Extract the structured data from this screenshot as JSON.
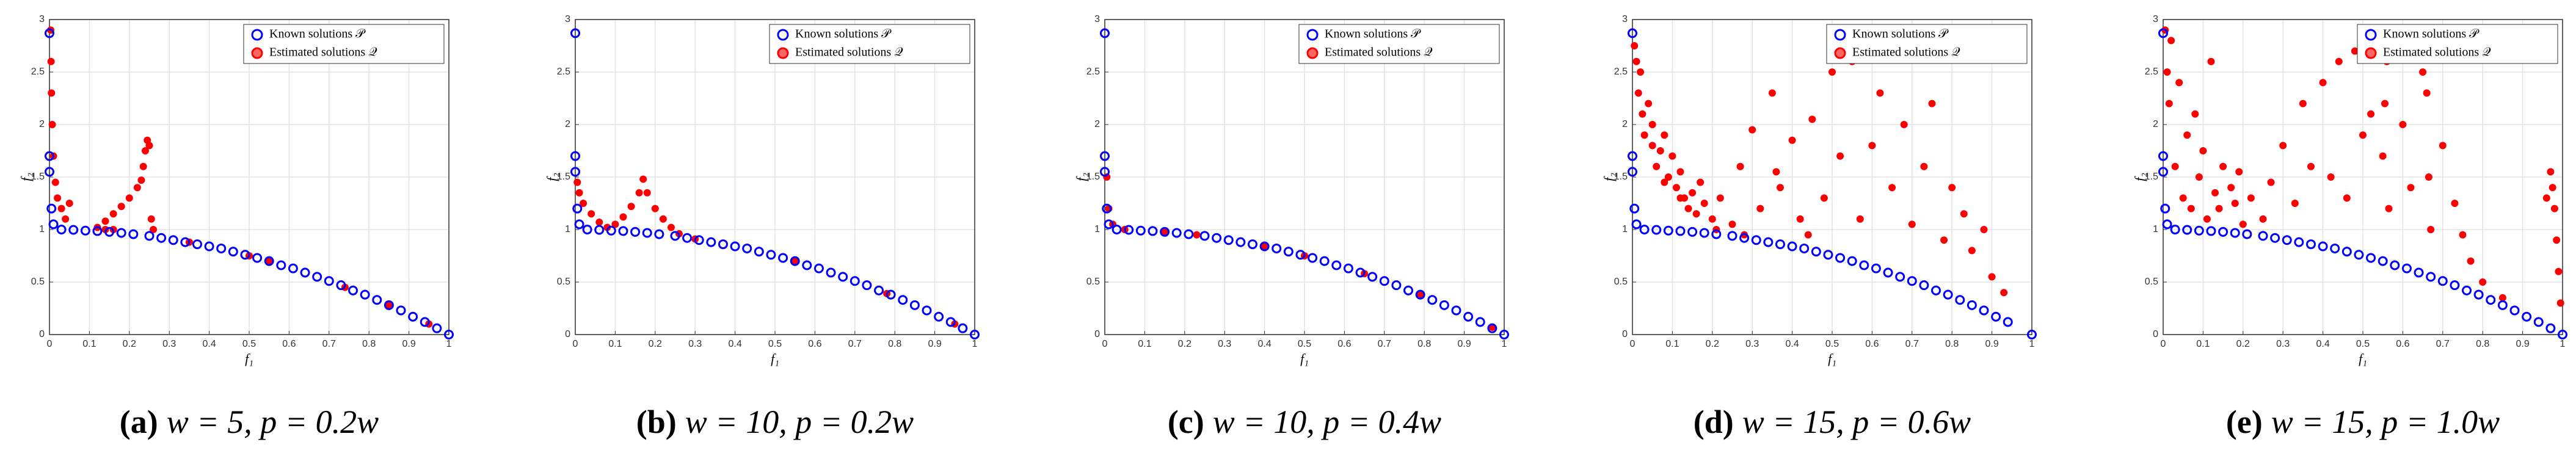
{
  "chart_data": [
    {
      "type": "scatter",
      "caption_label": "(a)",
      "caption": "w = 5, p = 0.2w",
      "xlabel": "f₁",
      "ylabel": "f₂",
      "xlim": [
        0,
        1
      ],
      "ylim": [
        0,
        3
      ],
      "xticks": [
        0,
        0.1,
        0.2,
        0.3,
        0.4,
        0.5,
        0.6,
        0.7,
        0.8,
        0.9,
        1
      ],
      "yticks": [
        0,
        0.5,
        1,
        1.5,
        2,
        2.5,
        3
      ],
      "grid": true,
      "series": [
        {
          "name": "Known solutions 𝒫",
          "color": "#0000ff",
          "x": [
            0,
            0,
            0,
            0.005,
            0.01,
            0.03,
            0.06,
            0.09,
            0.12,
            0.15,
            0.18,
            0.21,
            0.25,
            0.28,
            0.31,
            0.34,
            0.37,
            0.4,
            0.43,
            0.46,
            0.49,
            0.52,
            0.55,
            0.58,
            0.61,
            0.64,
            0.67,
            0.7,
            0.73,
            0.76,
            0.79,
            0.82,
            0.85,
            0.88,
            0.91,
            0.94,
            0.97,
            1
          ],
          "values": [
            2.87,
            1.7,
            1.55,
            1.2,
            1.05,
            1.0,
            0.997,
            0.99,
            0.986,
            0.978,
            0.968,
            0.956,
            0.94,
            0.92,
            0.9,
            0.88,
            0.86,
            0.84,
            0.82,
            0.79,
            0.76,
            0.73,
            0.7,
            0.66,
            0.63,
            0.59,
            0.55,
            0.51,
            0.47,
            0.42,
            0.38,
            0.33,
            0.28,
            0.23,
            0.17,
            0.12,
            0.06,
            0
          ]
        },
        {
          "name": "Estimated solutions 𝒬",
          "color": "#ff0000",
          "x": [
            0.003,
            0.004,
            0.005,
            0.007,
            0.01,
            0.015,
            0.02,
            0.03,
            0.04,
            0.05,
            0.12,
            0.14,
            0.16,
            0.18,
            0.2,
            0.22,
            0.23,
            0.14,
            0.16,
            0.235,
            0.24,
            0.245,
            0.25,
            0.255,
            0.26,
            0.35,
            0.5,
            0.55,
            0.74,
            0.85,
            0.95
          ],
          "values": [
            2.9,
            2.6,
            2.3,
            2.0,
            1.7,
            1.45,
            1.3,
            1.2,
            1.1,
            1.25,
            1.02,
            1.08,
            1.15,
            1.22,
            1.3,
            1.4,
            1.47,
            1.0,
            1.0,
            1.6,
            1.75,
            1.85,
            1.8,
            1.1,
            1.0,
            0.88,
            0.75,
            0.7,
            0.45,
            0.28,
            0.1
          ]
        }
      ]
    },
    {
      "type": "scatter",
      "caption_label": "(b)",
      "caption": "w = 10, p = 0.2w",
      "xlabel": "f₁",
      "ylabel": "f₂",
      "xlim": [
        0,
        1
      ],
      "ylim": [
        0,
        3
      ],
      "xticks": [
        0,
        0.1,
        0.2,
        0.3,
        0.4,
        0.5,
        0.6,
        0.7,
        0.8,
        0.9,
        1
      ],
      "yticks": [
        0,
        0.5,
        1,
        1.5,
        2,
        2.5,
        3
      ],
      "grid": true,
      "series": [
        {
          "name": "Known solutions 𝒫",
          "color": "#0000ff",
          "x": [
            0,
            0,
            0,
            0.005,
            0.01,
            0.03,
            0.06,
            0.09,
            0.12,
            0.15,
            0.18,
            0.21,
            0.25,
            0.28,
            0.31,
            0.34,
            0.37,
            0.4,
            0.43,
            0.46,
            0.49,
            0.52,
            0.55,
            0.58,
            0.61,
            0.64,
            0.67,
            0.7,
            0.73,
            0.76,
            0.79,
            0.82,
            0.85,
            0.88,
            0.91,
            0.94,
            0.97,
            1
          ],
          "values": [
            2.87,
            1.7,
            1.55,
            1.2,
            1.05,
            1.0,
            0.997,
            0.99,
            0.986,
            0.978,
            0.968,
            0.956,
            0.94,
            0.92,
            0.9,
            0.88,
            0.86,
            0.84,
            0.82,
            0.79,
            0.76,
            0.73,
            0.7,
            0.66,
            0.63,
            0.59,
            0.55,
            0.51,
            0.47,
            0.42,
            0.38,
            0.33,
            0.28,
            0.23,
            0.17,
            0.12,
            0.06,
            0
          ]
        },
        {
          "name": "Estimated solutions 𝒬",
          "color": "#ff0000",
          "x": [
            0.005,
            0.01,
            0.02,
            0.04,
            0.06,
            0.08,
            0.1,
            0.12,
            0.14,
            0.16,
            0.17,
            0.18,
            0.2,
            0.22,
            0.24,
            0.26,
            0.3,
            0.55,
            0.78,
            0.95
          ],
          "values": [
            1.45,
            1.35,
            1.25,
            1.15,
            1.07,
            1.02,
            1.05,
            1.12,
            1.22,
            1.35,
            1.48,
            1.35,
            1.2,
            1.1,
            1.02,
            0.96,
            0.91,
            0.7,
            0.39,
            0.1
          ]
        }
      ]
    },
    {
      "type": "scatter",
      "caption_label": "(c)",
      "caption": "w = 10, p = 0.4w",
      "xlabel": "f₁",
      "ylabel": "f₂",
      "xlim": [
        0,
        1
      ],
      "ylim": [
        0,
        3
      ],
      "xticks": [
        0,
        0.1,
        0.2,
        0.3,
        0.4,
        0.5,
        0.6,
        0.7,
        0.8,
        0.9,
        1
      ],
      "yticks": [
        0,
        0.5,
        1,
        1.5,
        2,
        2.5,
        3
      ],
      "grid": true,
      "series": [
        {
          "name": "Known solutions 𝒫",
          "color": "#0000ff",
          "x": [
            0,
            0,
            0,
            0.005,
            0.01,
            0.03,
            0.06,
            0.09,
            0.12,
            0.15,
            0.18,
            0.21,
            0.25,
            0.28,
            0.31,
            0.34,
            0.37,
            0.4,
            0.43,
            0.46,
            0.49,
            0.52,
            0.55,
            0.58,
            0.61,
            0.64,
            0.67,
            0.7,
            0.73,
            0.76,
            0.79,
            0.82,
            0.85,
            0.88,
            0.91,
            0.94,
            0.97,
            1
          ],
          "values": [
            2.87,
            1.7,
            1.55,
            1.2,
            1.05,
            1.0,
            0.997,
            0.99,
            0.986,
            0.978,
            0.968,
            0.956,
            0.94,
            0.92,
            0.9,
            0.88,
            0.86,
            0.84,
            0.82,
            0.79,
            0.76,
            0.73,
            0.7,
            0.66,
            0.63,
            0.59,
            0.55,
            0.51,
            0.47,
            0.42,
            0.38,
            0.33,
            0.28,
            0.23,
            0.17,
            0.12,
            0.06,
            0
          ]
        },
        {
          "name": "Estimated solutions 𝒬",
          "color": "#ff0000",
          "x": [
            0.005,
            0.01,
            0.02,
            0.05,
            0.15,
            0.23,
            0.4,
            0.5,
            0.65,
            0.79,
            0.97
          ],
          "values": [
            1.5,
            1.2,
            1.05,
            1.0,
            0.98,
            0.95,
            0.84,
            0.75,
            0.58,
            0.38,
            0.07
          ]
        }
      ]
    },
    {
      "type": "scatter",
      "caption_label": "(d)",
      "caption": "w = 15, p = 0.6w",
      "xlabel": "f₁",
      "ylabel": "f₂",
      "xlim": [
        0,
        1
      ],
      "ylim": [
        0,
        3
      ],
      "xticks": [
        0,
        0.1,
        0.2,
        0.3,
        0.4,
        0.5,
        0.6,
        0.7,
        0.8,
        0.9,
        1
      ],
      "yticks": [
        0,
        0.5,
        1,
        1.5,
        2,
        2.5,
        3
      ],
      "grid": true,
      "series": [
        {
          "name": "Known solutions 𝒫",
          "color": "#0000ff",
          "x": [
            0,
            0,
            0,
            0.005,
            0.01,
            0.03,
            0.06,
            0.09,
            0.12,
            0.15,
            0.18,
            0.21,
            0.25,
            0.28,
            0.31,
            0.34,
            0.37,
            0.4,
            0.43,
            0.46,
            0.49,
            0.52,
            0.55,
            0.58,
            0.61,
            0.64,
            0.67,
            0.7,
            0.73,
            0.76,
            0.79,
            0.82,
            0.85,
            0.88,
            0.91,
            0.94,
            1
          ],
          "values": [
            2.87,
            1.7,
            1.55,
            1.2,
            1.05,
            1.0,
            0.997,
            0.99,
            0.986,
            0.978,
            0.968,
            0.956,
            0.94,
            0.92,
            0.9,
            0.88,
            0.86,
            0.84,
            0.82,
            0.79,
            0.76,
            0.73,
            0.7,
            0.66,
            0.63,
            0.59,
            0.55,
            0.51,
            0.47,
            0.42,
            0.38,
            0.33,
            0.28,
            0.23,
            0.17,
            0.12,
            0
          ]
        },
        {
          "name": "Estimated solutions 𝒬",
          "color": "#ff0000",
          "x": [
            0.005,
            0.01,
            0.015,
            0.02,
            0.025,
            0.03,
            0.04,
            0.05,
            0.06,
            0.07,
            0.08,
            0.09,
            0.1,
            0.11,
            0.12,
            0.13,
            0.14,
            0.15,
            0.16,
            0.18,
            0.2,
            0.22,
            0.25,
            0.27,
            0.3,
            0.32,
            0.35,
            0.37,
            0.4,
            0.42,
            0.45,
            0.48,
            0.5,
            0.52,
            0.55,
            0.57,
            0.6,
            0.62,
            0.65,
            0.68,
            0.7,
            0.73,
            0.75,
            0.78,
            0.8,
            0.83,
            0.85,
            0.88,
            0.9,
            0.93,
            0.05,
            0.08,
            0.12,
            0.17,
            0.21,
            0.28,
            0.36,
            0.44
          ],
          "values": [
            2.75,
            2.6,
            2.3,
            2.5,
            2.1,
            1.9,
            2.2,
            1.8,
            1.6,
            1.75,
            1.45,
            1.5,
            1.7,
            1.4,
            1.55,
            1.3,
            1.2,
            1.35,
            1.15,
            1.25,
            1.1,
            1.3,
            1.05,
            1.6,
            1.95,
            1.2,
            2.3,
            1.4,
            1.85,
            1.1,
            2.05,
            1.3,
            2.5,
            1.7,
            2.6,
            1.1,
            1.8,
            2.3,
            1.4,
            2.0,
            1.05,
            1.6,
            2.2,
            0.9,
            1.4,
            1.15,
            0.8,
            1.0,
            0.55,
            0.4,
            2.0,
            1.9,
            1.3,
            1.45,
            1.0,
            0.95,
            1.55,
            0.95
          ]
        }
      ]
    },
    {
      "type": "scatter",
      "caption_label": "(e)",
      "caption": "w = 15, p = 1.0w",
      "xlabel": "f₁",
      "ylabel": "f₂",
      "xlim": [
        0,
        1
      ],
      "ylim": [
        0,
        3
      ],
      "xticks": [
        0,
        0.1,
        0.2,
        0.3,
        0.4,
        0.5,
        0.6,
        0.7,
        0.8,
        0.9,
        1
      ],
      "yticks": [
        0,
        0.5,
        1,
        1.5,
        2,
        2.5,
        3
      ],
      "grid": true,
      "series": [
        {
          "name": "Known solutions 𝒫",
          "color": "#0000ff",
          "x": [
            0,
            0,
            0,
            0.005,
            0.01,
            0.03,
            0.06,
            0.09,
            0.12,
            0.15,
            0.18,
            0.21,
            0.25,
            0.28,
            0.31,
            0.34,
            0.37,
            0.4,
            0.43,
            0.46,
            0.49,
            0.52,
            0.55,
            0.58,
            0.61,
            0.64,
            0.67,
            0.7,
            0.73,
            0.76,
            0.79,
            0.82,
            0.85,
            0.88,
            0.91,
            0.94,
            0.97,
            1
          ],
          "values": [
            2.87,
            1.7,
            1.55,
            1.2,
            1.05,
            1.0,
            0.997,
            0.99,
            0.986,
            0.978,
            0.968,
            0.956,
            0.94,
            0.92,
            0.9,
            0.88,
            0.86,
            0.84,
            0.82,
            0.79,
            0.76,
            0.73,
            0.7,
            0.66,
            0.63,
            0.59,
            0.55,
            0.51,
            0.47,
            0.42,
            0.38,
            0.33,
            0.28,
            0.23,
            0.17,
            0.12,
            0.06,
            0
          ]
        },
        {
          "name": "Estimated solutions 𝒬",
          "color": "#ff0000",
          "x": [
            0.005,
            0.01,
            0.015,
            0.02,
            0.03,
            0.04,
            0.05,
            0.06,
            0.07,
            0.08,
            0.09,
            0.1,
            0.11,
            0.12,
            0.13,
            0.14,
            0.15,
            0.17,
            0.18,
            0.19,
            0.2,
            0.22,
            0.25,
            0.27,
            0.3,
            0.33,
            0.35,
            0.37,
            0.4,
            0.42,
            0.44,
            0.46,
            0.48,
            0.5,
            0.52,
            0.55,
            0.555,
            0.56,
            0.565,
            0.57,
            0.6,
            0.62,
            0.65,
            0.66,
            0.665,
            0.67,
            0.7,
            0.73,
            0.75,
            0.77,
            0.8,
            0.85,
            0.96,
            0.97,
            0.975,
            0.98,
            0.985,
            0.99,
            0.995
          ],
          "values": [
            2.9,
            2.5,
            2.2,
            2.8,
            1.6,
            2.4,
            1.3,
            1.9,
            1.2,
            2.1,
            1.5,
            1.75,
            1.1,
            2.6,
            1.35,
            1.2,
            1.6,
            1.4,
            1.25,
            1.55,
            1.05,
            1.3,
            1.1,
            1.45,
            1.8,
            1.25,
            2.2,
            1.6,
            2.4,
            1.5,
            2.6,
            1.3,
            2.7,
            1.9,
            2.1,
            1.7,
            2.2,
            2.6,
            1.2,
            2.7,
            2.0,
            1.4,
            2.5,
            2.3,
            1.5,
            1.0,
            1.8,
            1.25,
            0.95,
            0.7,
            0.5,
            0.35,
            1.3,
            1.55,
            1.4,
            1.2,
            0.9,
            0.6,
            0.3
          ]
        }
      ]
    }
  ]
}
